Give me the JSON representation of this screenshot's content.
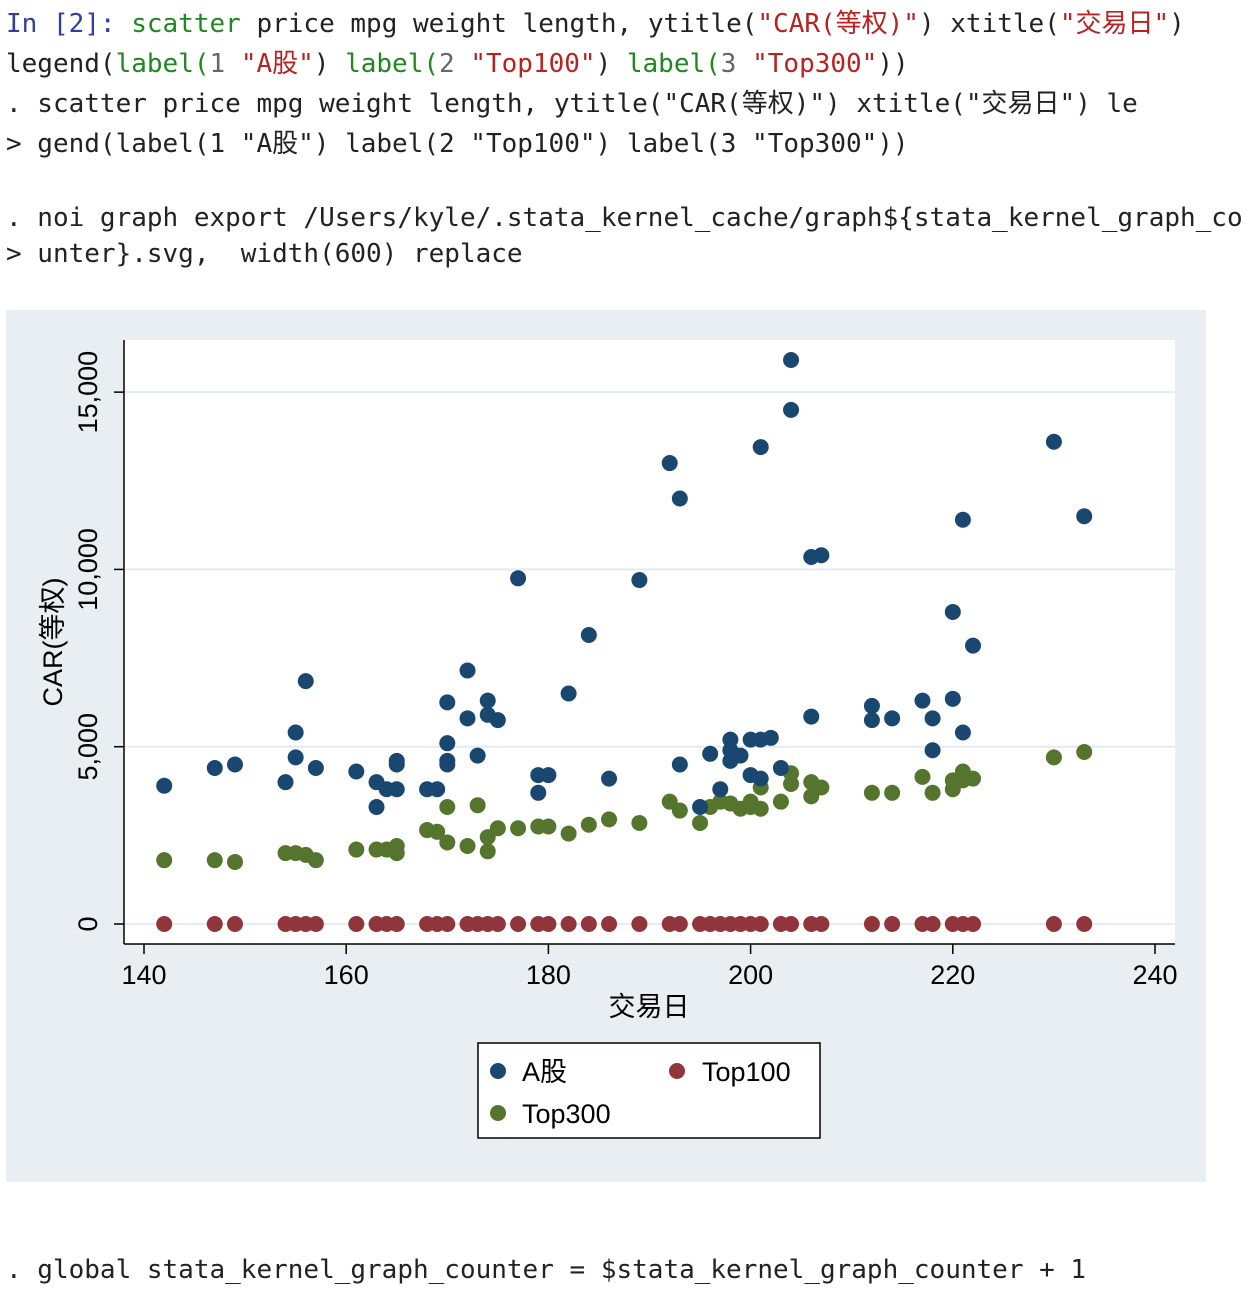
{
  "cell": {
    "prompt": "In [2]:",
    "cmd_line1_parts": [
      "scatter",
      " price mpg weight length, ",
      "ytitle(",
      "\"CAR(等权)\"",
      ") ",
      "xtitle(",
      "\"交易日\"",
      ")"
    ],
    "cmd_line2_parts": [
      "legend(",
      "label(",
      "1",
      " ",
      "\"A股\"",
      ") ",
      "label(",
      "2",
      " ",
      "\"Top100\"",
      ") ",
      "label(",
      "3",
      " ",
      "\"Top300\"",
      "))"
    ],
    "echo_lines": [
      ". scatter price mpg weight length, ytitle(\"CAR(等权)\") xtitle(\"交易日\") le",
      "> gend(label(1 \"A股\") label(2 \"Top100\") label(3 \"Top300\"))",
      ". noi graph export /Users/kyle/.stata_kernel_cache/graph${stata_kernel_graph_co",
      "> unter}.svg,  width(600) replace"
    ],
    "footer_line": ". global stata_kernel_graph_counter = $stata_kernel_graph_counter + 1"
  },
  "colors": {
    "series_a": "#1a476f",
    "series_top100": "#90353b",
    "series_top300": "#55752f",
    "plot_bg": "#ffffff",
    "graph_bg": "#e8eef2",
    "grid": "#e4ecf2"
  },
  "chart_data": {
    "type": "scatter",
    "xlabel": "交易日",
    "ylabel": "CAR(等权)",
    "xlim": [
      140,
      240
    ],
    "ylim": [
      0,
      15906
    ],
    "xticks": [
      "140",
      "160",
      "180",
      "200",
      "220",
      "240"
    ],
    "yticks": [
      "0",
      "5,000",
      "10,000",
      "15,000"
    ],
    "grid": true,
    "legend_position": "bottom",
    "series": [
      {
        "name": "A股",
        "points": [
          [
            142,
            3900
          ],
          [
            147,
            4400
          ],
          [
            149,
            4500
          ],
          [
            154,
            4000
          ],
          [
            155,
            4700
          ],
          [
            155,
            5400
          ],
          [
            156,
            6850
          ],
          [
            157,
            4400
          ],
          [
            161,
            4300
          ],
          [
            163,
            4000
          ],
          [
            163,
            3300
          ],
          [
            164,
            3800
          ],
          [
            165,
            4600
          ],
          [
            165,
            4500
          ],
          [
            165,
            3800
          ],
          [
            168,
            3800
          ],
          [
            169,
            3800
          ],
          [
            170,
            6250
          ],
          [
            170,
            5100
          ],
          [
            170,
            4600
          ],
          [
            170,
            4500
          ],
          [
            172,
            7150
          ],
          [
            172,
            5800
          ],
          [
            173,
            4750
          ],
          [
            174,
            6300
          ],
          [
            174,
            5900
          ],
          [
            175,
            5750
          ],
          [
            177,
            9750
          ],
          [
            179,
            4200
          ],
          [
            179,
            3700
          ],
          [
            180,
            4200
          ],
          [
            182,
            6500
          ],
          [
            184,
            8150
          ],
          [
            186,
            4100
          ],
          [
            189,
            9700
          ],
          [
            192,
            13000
          ],
          [
            193,
            12000
          ],
          [
            193,
            4500
          ],
          [
            195,
            3300
          ],
          [
            196,
            4800
          ],
          [
            197,
            3800
          ],
          [
            198,
            5200
          ],
          [
            198,
            4600
          ],
          [
            198,
            4900
          ],
          [
            199,
            4750
          ],
          [
            200,
            5200
          ],
          [
            200,
            4200
          ],
          [
            201,
            5200
          ],
          [
            201,
            13450
          ],
          [
            201,
            4100
          ],
          [
            202,
            5250
          ],
          [
            203,
            4400
          ],
          [
            204,
            15906
          ],
          [
            204,
            14500
          ],
          [
            206,
            10350
          ],
          [
            206,
            5850
          ],
          [
            207,
            10400
          ],
          [
            212,
            6150
          ],
          [
            212,
            5750
          ],
          [
            214,
            5800
          ],
          [
            217,
            6300
          ],
          [
            218,
            5800
          ],
          [
            218,
            4900
          ],
          [
            220,
            8800
          ],
          [
            220,
            6350
          ],
          [
            221,
            11400
          ],
          [
            221,
            5400
          ],
          [
            222,
            7850
          ],
          [
            230,
            13600
          ],
          [
            233,
            11500
          ]
        ]
      },
      {
        "name": "Top100",
        "points": [
          [
            142,
            0
          ],
          [
            147,
            0
          ],
          [
            149,
            0
          ],
          [
            154,
            0
          ],
          [
            155,
            0
          ],
          [
            156,
            0
          ],
          [
            157,
            0
          ],
          [
            161,
            0
          ],
          [
            163,
            0
          ],
          [
            164,
            0
          ],
          [
            165,
            0
          ],
          [
            168,
            0
          ],
          [
            169,
            0
          ],
          [
            170,
            0
          ],
          [
            172,
            0
          ],
          [
            173,
            0
          ],
          [
            174,
            0
          ],
          [
            175,
            0
          ],
          [
            177,
            0
          ],
          [
            179,
            0
          ],
          [
            180,
            0
          ],
          [
            182,
            0
          ],
          [
            184,
            0
          ],
          [
            186,
            0
          ],
          [
            189,
            0
          ],
          [
            192,
            0
          ],
          [
            193,
            0
          ],
          [
            195,
            0
          ],
          [
            196,
            0
          ],
          [
            197,
            0
          ],
          [
            198,
            0
          ],
          [
            199,
            0
          ],
          [
            200,
            0
          ],
          [
            201,
            0
          ],
          [
            203,
            0
          ],
          [
            204,
            0
          ],
          [
            206,
            0
          ],
          [
            207,
            0
          ],
          [
            212,
            0
          ],
          [
            214,
            0
          ],
          [
            217,
            0
          ],
          [
            218,
            0
          ],
          [
            220,
            0
          ],
          [
            221,
            0
          ],
          [
            222,
            0
          ],
          [
            230,
            0
          ],
          [
            233,
            0
          ]
        ]
      },
      {
        "name": "Top300",
        "points": [
          [
            142,
            1800
          ],
          [
            147,
            1800
          ],
          [
            149,
            1750
          ],
          [
            154,
            2000
          ],
          [
            155,
            2000
          ],
          [
            156,
            1950
          ],
          [
            157,
            1800
          ],
          [
            161,
            2100
          ],
          [
            163,
            2100
          ],
          [
            164,
            2100
          ],
          [
            165,
            2000
          ],
          [
            165,
            2200
          ],
          [
            168,
            2650
          ],
          [
            169,
            2600
          ],
          [
            170,
            3300
          ],
          [
            170,
            2300
          ],
          [
            172,
            2200
          ],
          [
            173,
            3350
          ],
          [
            174,
            2050
          ],
          [
            174,
            2450
          ],
          [
            175,
            2700
          ],
          [
            177,
            2700
          ],
          [
            179,
            2750
          ],
          [
            180,
            2750
          ],
          [
            182,
            2550
          ],
          [
            184,
            2800
          ],
          [
            186,
            2950
          ],
          [
            189,
            2850
          ],
          [
            192,
            3450
          ],
          [
            193,
            3200
          ],
          [
            195,
            2850
          ],
          [
            196,
            3300
          ],
          [
            197,
            3450
          ],
          [
            198,
            3400
          ],
          [
            199,
            3250
          ],
          [
            200,
            3450
          ],
          [
            200,
            3300
          ],
          [
            201,
            3250
          ],
          [
            201,
            3850
          ],
          [
            203,
            3450
          ],
          [
            204,
            4250
          ],
          [
            204,
            3950
          ],
          [
            206,
            3600
          ],
          [
            206,
            4000
          ],
          [
            207,
            3850
          ],
          [
            212,
            3700
          ],
          [
            214,
            3700
          ],
          [
            217,
            4150
          ],
          [
            218,
            3700
          ],
          [
            220,
            3800
          ],
          [
            220,
            4050
          ],
          [
            221,
            4300
          ],
          [
            221,
            4050
          ],
          [
            222,
            4100
          ],
          [
            230,
            4700
          ],
          [
            233,
            4850
          ]
        ]
      }
    ]
  }
}
